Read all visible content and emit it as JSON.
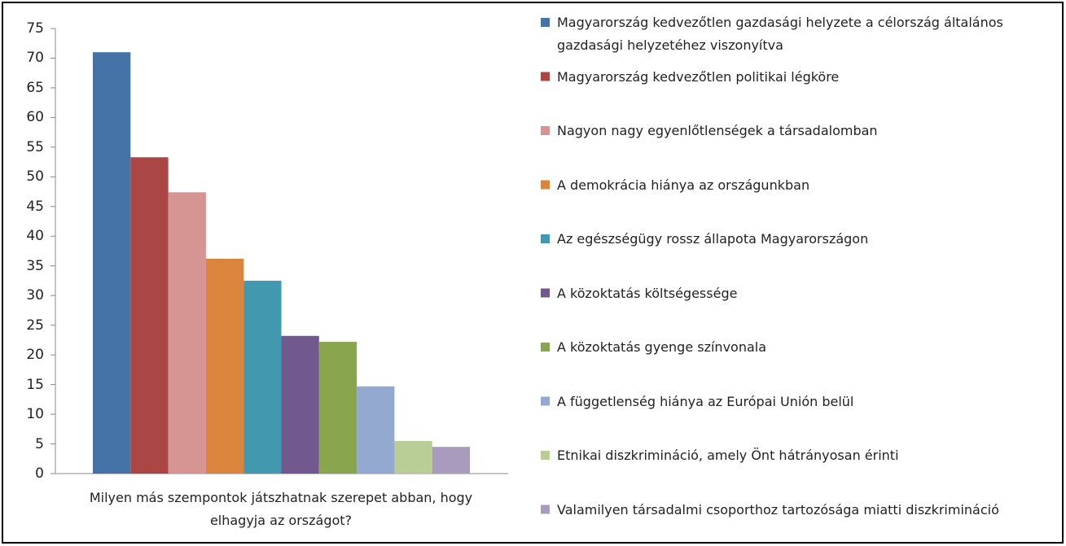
{
  "chart_data": {
    "type": "bar",
    "categories": [
      "Milyen más szempontok játszhatnak szerepet abban, hogy elhagyja az országot?"
    ],
    "series": [
      {
        "name": "Magyarország kedvezőtlen gazdasági helyzete a célország általános gazdasági helyzetéhez viszonyítva",
        "color": "#4572a7",
        "values": [
          71.0
        ]
      },
      {
        "name": "Magyarország kedvezőtlen politikai légköre",
        "color": "#aa4643",
        "values": [
          53.3
        ]
      },
      {
        "name": "Nagyon nagy egyenlőtlenségek a társadalomban",
        "color": "#d69593",
        "values": [
          47.4
        ]
      },
      {
        "name": "A demokrácia hiánya az országunkban",
        "color": "#db843d",
        "values": [
          36.2
        ]
      },
      {
        "name": "Az egészségügy rossz állapota Magyarországon",
        "color": "#4198af",
        "values": [
          32.5
        ]
      },
      {
        "name": " A közoktatás költségessége",
        "color": "#71588f",
        "values": [
          23.2
        ]
      },
      {
        "name": "A közoktatás gyenge színvonala",
        "color": "#89a54e",
        "values": [
          22.2
        ]
      },
      {
        "name": "A függetlenség hiánya az Európai Unión belül",
        "color": "#93a9cf",
        "values": [
          14.7
        ]
      },
      {
        "name": "Etnikai diszkrimináció, amely Önt hátrányosan érinti",
        "color": "#b9cd96",
        "values": [
          5.5
        ]
      },
      {
        "name": "Valamilyen társadalmi csoporthoz tartozósága miatti diszkrimináció",
        "color": "#a99bbd",
        "values": [
          4.5
        ]
      }
    ],
    "ylim": [
      0,
      75
    ],
    "yticks": [
      0,
      5,
      10,
      15,
      20,
      25,
      30,
      35,
      40,
      45,
      50,
      55,
      60,
      65,
      70,
      75
    ],
    "legend": "right"
  }
}
